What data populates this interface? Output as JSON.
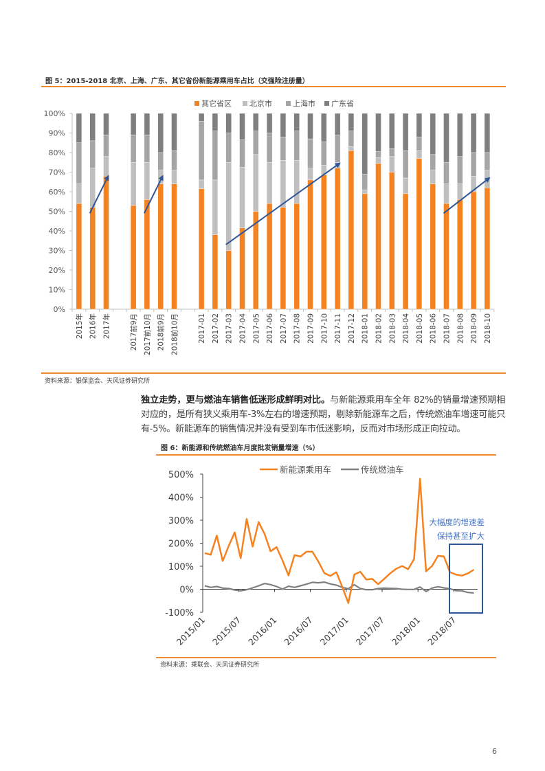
{
  "figure5": {
    "title": "图 5：2015-2018 北京、上海、广东、其它省份新能源乘用车占比（交强险注册量）",
    "source": "资料来源：银保监会、天风证券研究所"
  },
  "paragraph": {
    "bold": "独立走势，更与燃油车销售低迷形成鲜明对比。",
    "text": "与新能源乘用车全年 82%的销量增速预期相对应的，是所有狭义乘用车-3%左右的增速预期，剔除新能源车之后，传统燃油车增速可能只有-5%。新能源车的销售情况并没有受到车市低迷影响，反而对市场形成正向拉动。"
  },
  "figure6": {
    "title": "图 6：新能源和传统燃油车月度批发销量增速（%）",
    "source": "资料来源：乘联会、天风证券研究所",
    "annotation_line1": "大幅度的增速差",
    "annotation_line2": "保持甚至扩大"
  },
  "page_number": "6",
  "chart_data": [
    {
      "type": "bar",
      "stacked": true,
      "percent_stacked": true,
      "categories": [
        "2015年",
        "2016年",
        "2017年",
        "",
        "2017前9月",
        "2017前10月",
        "2018前9月",
        "2018前10月",
        "",
        "2017-01",
        "2017-02",
        "2017-03",
        "2017-04",
        "2017-05",
        "2017-06",
        "2017-07",
        "2017-08",
        "2017-09",
        "2017-10",
        "2017-11",
        "2017-12",
        "2018-01",
        "2018-02",
        "2018-03",
        "2018-04",
        "2018-05",
        "2018-06",
        "2018-07",
        "2018-08",
        "2018-09",
        "2018-10"
      ],
      "series": [
        {
          "name": "其它省区",
          "color": "#F58220",
          "values": [
            54,
            52,
            68,
            null,
            53,
            56,
            64,
            64,
            null,
            61.5,
            38,
            30,
            41.5,
            50,
            54,
            52,
            54,
            66,
            68.5,
            72,
            81,
            59,
            74.5,
            70,
            59,
            77,
            64,
            54,
            56,
            60,
            62
          ]
        },
        {
          "name": "北京市",
          "color": "#BFBFBF",
          "values": [
            10,
            20,
            10,
            null,
            22,
            19,
            7,
            7,
            null,
            4.5,
            28,
            45,
            31,
            29,
            21,
            24,
            22,
            6,
            5,
            3,
            2,
            2,
            3,
            8,
            8,
            4,
            7,
            10,
            8,
            8,
            9
          ]
        },
        {
          "name": "上海市",
          "color": "#A5A5A5",
          "values": [
            21,
            14,
            11,
            null,
            14,
            14,
            9,
            10,
            null,
            30,
            25,
            15,
            14,
            12,
            15,
            12,
            15,
            15,
            12,
            14,
            8,
            8,
            3,
            4,
            14,
            7,
            8,
            11,
            14,
            12,
            9
          ]
        },
        {
          "name": "广东省",
          "color": "#7F7F7F",
          "values": [
            15,
            14,
            11,
            null,
            11,
            11,
            20,
            19,
            null,
            4,
            9,
            10,
            13.5,
            9,
            10,
            12,
            9,
            13,
            14.5,
            11,
            9,
            31,
            19.5,
            18,
            19,
            12,
            21,
            25,
            22,
            20,
            20
          ]
        }
      ],
      "ylim": [
        0,
        100
      ],
      "yticks": [
        "0%",
        "10%",
        "20%",
        "30%",
        "40%",
        "50%",
        "60%",
        "70%",
        "80%",
        "90%",
        "100%"
      ],
      "legend": "top",
      "grid": false,
      "arrows": [
        {
          "from": [
            "2016年",
            49
          ],
          "to": [
            "2017年",
            68
          ]
        },
        {
          "from": [
            "2017前10月",
            49
          ],
          "to": [
            "2018前9月",
            68
          ]
        },
        {
          "from": [
            "2017-03",
            33
          ],
          "to": [
            "2017-11",
            74.5
          ]
        },
        {
          "from": [
            "2018-07",
            49
          ],
          "to": [
            "2018-10",
            67
          ]
        }
      ],
      "arrow_color": "#2F5597"
    },
    {
      "type": "line",
      "x": [
        "2015/01",
        "2015/02",
        "2015/03",
        "2015/04",
        "2015/05",
        "2015/06",
        "2015/07",
        "2015/08",
        "2015/09",
        "2015/10",
        "2015/11",
        "2015/12",
        "2016/01",
        "2016/02",
        "2016/03",
        "2016/04",
        "2016/05",
        "2016/06",
        "2016/07",
        "2016/08",
        "2016/09",
        "2016/10",
        "2016/11",
        "2016/12",
        "2017/01",
        "2017/02",
        "2017/03",
        "2017/04",
        "2017/05",
        "2017/06",
        "2017/07",
        "2017/08",
        "2017/09",
        "2017/10",
        "2017/11",
        "2017/12",
        "2018/01",
        "2018/02",
        "2018/03",
        "2018/04",
        "2018/05",
        "2018/06",
        "2018/07",
        "2018/08",
        "2018/09",
        "2018/10"
      ],
      "xticks": [
        "2015/01",
        "2015/07",
        "2016/01",
        "2016/07",
        "2017/01",
        "2017/07",
        "2018/01",
        "2018/07"
      ],
      "series": [
        {
          "name": "新能源乘用车",
          "color": "#F58220",
          "values": [
            157,
            150,
            233,
            123,
            188,
            247,
            135,
            305,
            185,
            292,
            240,
            165,
            183,
            125,
            60,
            148,
            142,
            163,
            163,
            120,
            70,
            58,
            74,
            10,
            -60,
            64,
            76,
            42,
            45,
            22,
            45,
            69,
            89,
            101,
            87,
            131,
            480,
            78,
            101,
            145,
            142,
            74,
            64,
            59,
            69,
            85
          ]
        },
        {
          "name": "传统燃油车",
          "color": "#7F7F7F",
          "values": [
            15,
            8,
            12,
            5,
            3,
            -3,
            -7,
            -2,
            6,
            15,
            25,
            20,
            12,
            1,
            13,
            8,
            15,
            22,
            30,
            28,
            31,
            23,
            18,
            8,
            2,
            20,
            3,
            -2,
            -2,
            3,
            5,
            4,
            3,
            0,
            -1,
            -1,
            10,
            -10,
            5,
            11,
            6,
            2,
            -6,
            -7,
            -14,
            -16
          ]
        }
      ],
      "ylim": [
        -100,
        500
      ],
      "yticks": [
        "-100%",
        "0%",
        "100%",
        "200%",
        "300%",
        "400%",
        "500%"
      ],
      "legend": "top",
      "grid": false,
      "box_color": "#2F5597",
      "annotation_color": "#4472C4"
    }
  ]
}
